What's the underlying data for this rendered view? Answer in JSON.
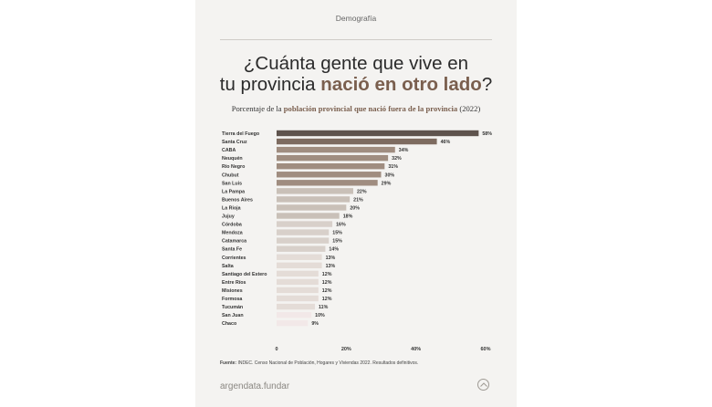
{
  "section_label": "Demografía",
  "title": {
    "line1": "¿Cuánta gente que vive en",
    "line2_plain": "tu provincia ",
    "line2_accent": "nació en otro lado",
    "line2_end": "?"
  },
  "subtitle": {
    "before": "Porcentaje de la ",
    "accent": "población provincial que nació fuera de la provincia",
    "after": " (2022)"
  },
  "source": {
    "label": "Fuente:",
    "text": " INDEC. Censo Nacional de Población, Hogares y Viviendas 2022. Resultados definitivos."
  },
  "brand": "argendata.fundar",
  "icons": {
    "up_button": "chevron-up-icon"
  },
  "colors": {
    "accent": "#7a5f4e",
    "background": "#f4f3f1"
  },
  "chart_data": {
    "type": "bar",
    "orientation": "horizontal",
    "categories": [
      "Tierra del Fuego",
      "Santa Cruz",
      "CABA",
      "Neuquén",
      "Río Negro",
      "Chubut",
      "San Luis",
      "La Pampa",
      "Buenos Aires",
      "La Rioja",
      "Jujuy",
      "Córdoba",
      "Mendoza",
      "Catamarca",
      "Santa Fe",
      "Corrientes",
      "Salta",
      "Santiago del Estero",
      "Entre Ríos",
      "Misiones",
      "Formosa",
      "Tucumán",
      "San Juan",
      "Chaco"
    ],
    "values": [
      58,
      46,
      34,
      32,
      31,
      30,
      29,
      22,
      21,
      20,
      18,
      16,
      15,
      15,
      14,
      13,
      13,
      12,
      12,
      12,
      12,
      11,
      10,
      9
    ],
    "value_labels": [
      "58%",
      "46%",
      "34%",
      "32%",
      "31%",
      "30%",
      "29%",
      "22%",
      "21%",
      "20%",
      "18%",
      "16%",
      "15%",
      "15%",
      "14%",
      "13%",
      "13%",
      "12%",
      "12%",
      "12%",
      "12%",
      "11%",
      "10%",
      "9%"
    ],
    "bar_colors": [
      "#5e534d",
      "#7d6b60",
      "#a08d80",
      "#a08d80",
      "#a08d80",
      "#a08d80",
      "#a08d80",
      "#c9c0b8",
      "#c9c0b8",
      "#c9c0b8",
      "#c9c0b8",
      "#d8d0ca",
      "#d8d0ca",
      "#d8d0ca",
      "#d8d0ca",
      "#e4dcd7",
      "#e4dcd7",
      "#e4dcd7",
      "#e4dcd7",
      "#e4dcd7",
      "#e4dcd7",
      "#e4dcd7",
      "#f2e8e8",
      "#f2e8e8"
    ],
    "x_ticks": [
      0,
      20,
      40,
      60
    ],
    "x_tick_labels": [
      "0",
      "20%",
      "40%",
      "60%"
    ],
    "xlim": [
      0,
      60
    ],
    "grid": false,
    "legend": "none"
  }
}
